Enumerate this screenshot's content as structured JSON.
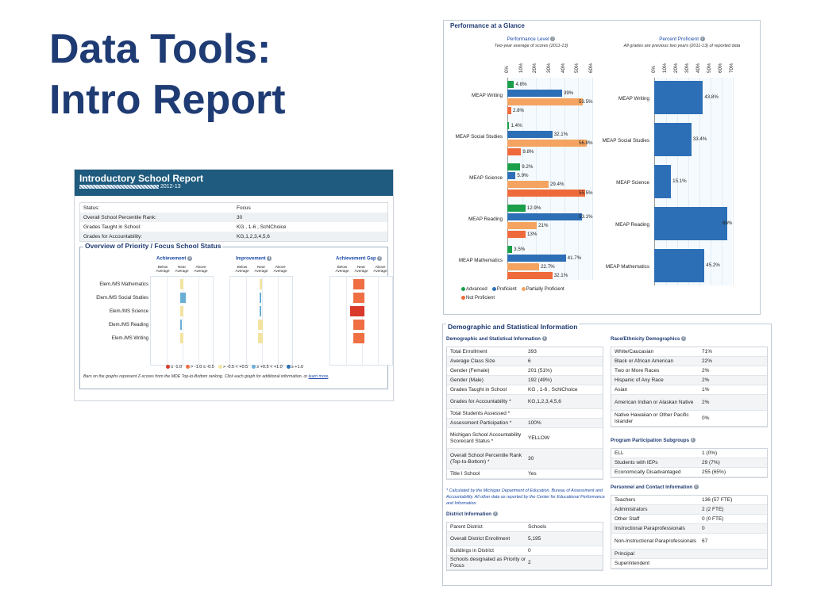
{
  "slide": {
    "title_line1": "Data Tools:",
    "title_line2": "Intro Report"
  },
  "intro": {
    "title": "Introductory School Report",
    "subtitle": "2012-13",
    "info_rows": [
      {
        "k": "Status:",
        "v": "Focus"
      },
      {
        "k": "Overall School Percentile Rank:",
        "v": "30"
      },
      {
        "k": "Grades Taught in School:",
        "v": "KG , 1-6 , SchlChoice"
      },
      {
        "k": "Grades for Accountability:",
        "v": "KG,1,2,3,4,5,6"
      }
    ],
    "overview_title": "Overview of Priority / Focus School Status",
    "columns": [
      "Achievement",
      "Improvement",
      "Achievement Gap"
    ],
    "sub_heads": [
      "Below Average",
      "Near Average",
      "Above Average"
    ],
    "rows": [
      "Elem./MS Mathematics",
      "Elem./MS Social Studies",
      "Elem./MS Science",
      "Elem./MS Reading",
      "Elem./MS Writing"
    ],
    "z_legend": [
      "≤ -1.0",
      "> -1.0 ≤ -0.5",
      "> -0.5 < +0.5",
      "≥ +0.5 < +1.0",
      "≥ +1.0"
    ],
    "z_colors": [
      "#d9392b",
      "#ef6f43",
      "#f2e3a1",
      "#6aaed6",
      "#2b6fb5"
    ],
    "note": "Bars on the graphs represent Z-scores from the MDE Top-to-Bottom ranking. Click each graph for additional information, or",
    "note_link": "learn more",
    "note_end": "."
  },
  "glance": {
    "title": "Performance at a Glance",
    "left_head": "Performance Level",
    "left_sub": "Two-year average of scores (2011-13)",
    "right_head": "Percent Proficient",
    "right_sub": "All grades are previous two years (2011-13) of reported data",
    "left_ticks": [
      "0%",
      "10%",
      "20%",
      "30%",
      "40%",
      "50%",
      "60%"
    ],
    "right_ticks": [
      "0%",
      "10%",
      "20%",
      "30%",
      "40%",
      "50%",
      "60%",
      "70%"
    ],
    "legend": [
      "Advanced",
      "Proficient",
      "Partially Proficient",
      "Not Proficient"
    ],
    "colors": {
      "advanced": "#1a9e4a",
      "proficient": "#2d6fb6",
      "partial": "#f4a460",
      "not": "#ef6a3a"
    }
  },
  "chart_data": [
    {
      "type": "bar",
      "title": "Performance Level",
      "subtitle": "Two-year average of scores (2011-13)",
      "categories": [
        "MEAP Writing",
        "MEAP Social Studies",
        "MEAP Science",
        "MEAP Reading",
        "MEAP Mathematics"
      ],
      "series": [
        {
          "name": "Advanced",
          "values": [
            4.8,
            1.4,
            9.2,
            12.9,
            3.5
          ]
        },
        {
          "name": "Proficient",
          "values": [
            39,
            32.1,
            5.9,
            53.1,
            41.7
          ]
        },
        {
          "name": "Partially Proficient",
          "values": [
            53.5,
            56.8,
            29.4,
            21,
            22.7
          ]
        },
        {
          "name": "Not Proficient",
          "values": [
            2.8,
            9.8,
            55.5,
            13,
            32.1
          ]
        }
      ],
      "value_labels": [
        [
          "4.8%",
          "39%",
          "53.5%",
          "2.8%"
        ],
        [
          "1.4%",
          "32.1%",
          "56.8%",
          "9.8%"
        ],
        [
          "9.2%",
          "5.9%",
          "29.4%",
          "55.5%"
        ],
        [
          "12.9%",
          "53.1%",
          "21%",
          "13%"
        ],
        [
          "3.5%",
          "41.7%",
          "22.7%",
          "32.1%"
        ]
      ],
      "xlim": [
        0,
        60
      ],
      "legend": "bottom-left"
    },
    {
      "type": "bar",
      "title": "Percent Proficient",
      "subtitle": "All grades are previous two years (2011-13) of reported data",
      "categories": [
        "MEAP Writing",
        "MEAP Social Studies",
        "MEAP Science",
        "MEAP Reading",
        "MEAP Mathematics"
      ],
      "values": [
        43.8,
        33.4,
        15.1,
        66,
        45.2
      ],
      "value_labels": [
        "43.8%",
        "33.4%",
        "15.1%",
        "66%",
        "45.2%"
      ],
      "xlim": [
        0,
        70
      ]
    }
  ],
  "demo": {
    "title": "Demographic and Statistical Information",
    "left_head": "Demographic and Statistical Information",
    "left_rows": [
      {
        "k": "Total Enrollment",
        "v": "393"
      },
      {
        "k": "Average Class Size",
        "v": "6"
      },
      {
        "k": "Gender (Female)",
        "v": "201 (51%)"
      },
      {
        "k": "Gender (Male)",
        "v": "192 (49%)"
      },
      {
        "k": "Grades Taught in School",
        "v": "KG , 1-6 , SchlChoice"
      },
      {
        "k": "Grades for Accountability *",
        "v": "KG,1,2,3,4,5,6"
      },
      {
        "k": "Total Students Assessed *",
        "v": ""
      },
      {
        "k": "Assessment Participation *",
        "v": "100%"
      },
      {
        "k": "Michigan School Accountability Scorecard Status *",
        "v": "YELLOW"
      },
      {
        "k": "Overall School Percentile Rank (Top-to-Bottom) *",
        "v": "30"
      },
      {
        "k": "Title I School",
        "v": "Yes"
      }
    ],
    "footnote": "* Calculated by the Michigan Department of Education, Bureau of Assessment and Accountability. All other data as reported by the Center for Educational Performance and Information.",
    "district_head": "District Information",
    "district_rows": [
      {
        "k": "Parent District",
        "v": "Schools"
      },
      {
        "k": "Overall District Enrollment",
        "v": "5,195"
      },
      {
        "k": "Buildings in District",
        "v": "0"
      },
      {
        "k": "Schools designated as Priority or Focus",
        "v": "2"
      }
    ],
    "race_head": "Race/Ethnicity Demographics",
    "race_rows": [
      {
        "k": "White/Caucasian",
        "v": "71%"
      },
      {
        "k": "Black or African American",
        "v": "22%"
      },
      {
        "k": "Two or More Races",
        "v": "2%"
      },
      {
        "k": "Hispanic of Any Race",
        "v": "2%"
      },
      {
        "k": "Asian",
        "v": "1%"
      },
      {
        "k": "American Indian or Alaskan Native",
        "v": "2%"
      },
      {
        "k": "Native Hawaiian or Other Pacific Islander",
        "v": "0%"
      }
    ],
    "program_head": "Program Participation Subgroups",
    "program_rows": [
      {
        "k": "ELL",
        "v": "1 (0%)"
      },
      {
        "k": "Students with IEPs",
        "v": "29 (7%)"
      },
      {
        "k": "Economically Disadvantaged",
        "v": "255 (65%)"
      }
    ],
    "personnel_head": "Personnel and Contact Information",
    "personnel_rows": [
      {
        "k": "Teachers",
        "v": "136 (57 FTE)"
      },
      {
        "k": "Administrators",
        "v": "2 (2 FTE)"
      },
      {
        "k": "Other Staff",
        "v": "0 (0 FTE)"
      },
      {
        "k": "Instructional Paraprofessionals",
        "v": "0"
      },
      {
        "k": "Non-Instructional Paraprofessionals",
        "v": "67"
      },
      {
        "k": "Principal",
        "v": ""
      },
      {
        "k": "Superintendent",
        "v": ""
      }
    ]
  }
}
